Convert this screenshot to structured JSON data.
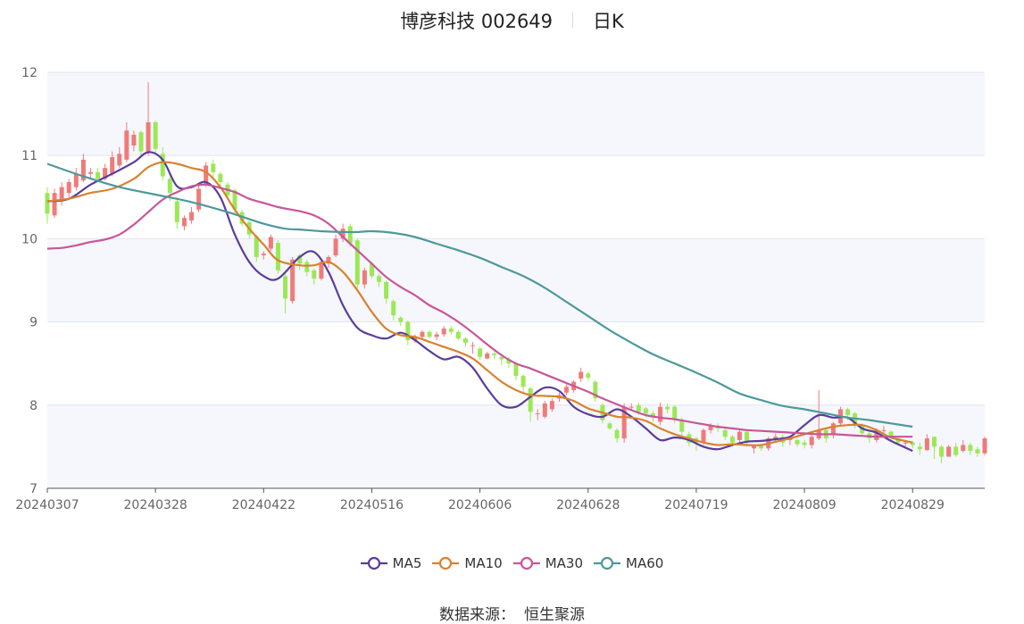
{
  "title": {
    "name": "博彦科技 002649",
    "period": "日K"
  },
  "source": {
    "label": "数据来源：",
    "value": "恒生聚源"
  },
  "colors": {
    "up": "#f07a7a",
    "down": "#9be857",
    "grid": "#e2e5ee",
    "band": "#f6f7fc",
    "axis": "#555555"
  },
  "chart_data": {
    "type": "candlestick",
    "ylim": [
      7,
      12
    ],
    "yticks": [
      7,
      8,
      9,
      10,
      11,
      12
    ],
    "xtick_labels": [
      "20240307",
      "20240328",
      "20240422",
      "20240516",
      "20240606",
      "20240628",
      "20240719",
      "20240809",
      "20240829"
    ],
    "xtick_index": [
      0,
      15,
      30,
      45,
      60,
      75,
      90,
      105,
      120
    ],
    "open": [
      10.55,
      10.28,
      10.45,
      10.55,
      10.62,
      10.7,
      10.78,
      10.8,
      10.72,
      10.78,
      10.88,
      10.95,
      11.12,
      11.28,
      11.05,
      11.4,
      11.02,
      10.72,
      10.45,
      10.15,
      10.22,
      10.35,
      10.65,
      10.9,
      10.78,
      10.65,
      10.58,
      10.32,
      10.2,
      10.03,
      9.8,
      9.88,
      9.95,
      9.55,
      9.25,
      9.8,
      9.72,
      9.62,
      9.52,
      9.7,
      9.8,
      10.0,
      10.15,
      9.98,
      9.45,
      9.7,
      9.55,
      9.48,
      9.25,
      9.05,
      9.0,
      8.78,
      8.82,
      8.88,
      8.82,
      8.85,
      8.92,
      8.88,
      8.8,
      8.72,
      8.68,
      8.56,
      8.62,
      8.58,
      8.55,
      8.5,
      8.35,
      8.2,
      7.9,
      7.86,
      7.95,
      8.08,
      8.15,
      8.18,
      8.32,
      8.38,
      8.28,
      8.0,
      7.78,
      7.7,
      7.6,
      7.98,
      8.0,
      7.96,
      7.9,
      7.8,
      7.98,
      7.98,
      7.82,
      7.65,
      7.6,
      7.55,
      7.7,
      7.75,
      7.7,
      7.62,
      7.58,
      7.68,
      7.48,
      7.52,
      7.48,
      7.58,
      7.62,
      7.58,
      7.58,
      7.55,
      7.52,
      7.6,
      7.7,
      7.65,
      7.78,
      7.95,
      7.9,
      7.76,
      7.66,
      7.58,
      7.7,
      7.68,
      7.6,
      7.55,
      7.55,
      7.5,
      7.46,
      7.62,
      7.5,
      7.38,
      7.5,
      7.45,
      7.52,
      7.47,
      7.42
    ],
    "close": [
      10.3,
      10.55,
      10.62,
      10.68,
      10.78,
      10.95,
      10.8,
      10.72,
      10.85,
      10.98,
      11.02,
      11.3,
      11.25,
      11.05,
      11.4,
      11.08,
      10.75,
      10.55,
      10.2,
      10.25,
      10.32,
      10.6,
      10.88,
      10.8,
      10.68,
      10.52,
      10.35,
      10.18,
      10.05,
      9.78,
      9.82,
      10.02,
      9.62,
      9.28,
      9.75,
      9.7,
      9.6,
      9.52,
      9.72,
      9.78,
      10.0,
      10.12,
      9.95,
      9.45,
      9.62,
      9.55,
      9.48,
      9.28,
      9.08,
      9.0,
      8.78,
      8.82,
      8.88,
      8.82,
      8.85,
      8.92,
      8.88,
      8.8,
      8.75,
      8.72,
      8.58,
      8.62,
      8.6,
      8.55,
      8.5,
      8.35,
      8.22,
      7.92,
      7.9,
      8.02,
      8.05,
      8.12,
      8.22,
      8.28,
      8.4,
      8.33,
      8.08,
      7.82,
      7.72,
      7.6,
      7.98,
      7.98,
      7.92,
      7.9,
      7.85,
      7.98,
      7.95,
      7.82,
      7.68,
      7.55,
      7.55,
      7.7,
      7.75,
      7.72,
      7.62,
      7.55,
      7.68,
      7.55,
      7.52,
      7.48,
      7.6,
      7.62,
      7.55,
      7.6,
      7.53,
      7.52,
      7.62,
      7.7,
      7.6,
      7.78,
      7.95,
      7.88,
      7.76,
      7.66,
      7.6,
      7.7,
      7.7,
      7.62,
      7.55,
      7.55,
      7.52,
      7.47,
      7.6,
      7.5,
      7.38,
      7.5,
      7.4,
      7.52,
      7.45,
      7.42,
      7.6
    ],
    "high": [
      10.62,
      10.6,
      10.68,
      10.72,
      10.85,
      11.02,
      10.85,
      10.85,
      10.9,
      11.05,
      11.1,
      11.4,
      11.3,
      11.3,
      11.88,
      11.42,
      11.1,
      10.75,
      10.5,
      10.28,
      10.38,
      10.65,
      10.92,
      10.95,
      10.8,
      10.68,
      10.6,
      10.35,
      10.22,
      10.05,
      9.85,
      10.05,
      9.98,
      9.58,
      9.78,
      9.82,
      9.75,
      9.64,
      9.76,
      9.8,
      10.05,
      10.18,
      10.18,
      10.0,
      9.65,
      9.72,
      9.58,
      9.5,
      9.27,
      9.07,
      9.02,
      8.85,
      8.9,
      8.9,
      8.88,
      8.95,
      8.95,
      8.9,
      8.82,
      8.76,
      8.7,
      8.64,
      8.65,
      8.62,
      8.58,
      8.52,
      8.37,
      8.22,
      7.95,
      8.05,
      8.08,
      8.15,
      8.25,
      8.3,
      8.45,
      8.4,
      8.3,
      8.03,
      7.8,
      7.72,
      8.02,
      8.02,
      8.03,
      7.98,
      7.93,
      8.03,
      8.02,
      8.0,
      7.85,
      7.68,
      7.62,
      7.72,
      7.78,
      7.78,
      7.72,
      7.64,
      7.7,
      7.7,
      7.5,
      7.53,
      7.62,
      7.66,
      7.65,
      7.62,
      7.6,
      7.58,
      7.65,
      8.18,
      7.72,
      7.8,
      7.98,
      7.97,
      7.92,
      7.78,
      7.68,
      7.72,
      7.75,
      7.7,
      7.62,
      7.58,
      7.57,
      7.55,
      7.65,
      7.62,
      7.52,
      7.52,
      7.55,
      7.58,
      7.55,
      7.5,
      7.62
    ],
    "low": [
      10.18,
      10.25,
      10.4,
      10.5,
      10.58,
      10.68,
      10.72,
      10.68,
      10.7,
      10.75,
      10.85,
      10.92,
      11.05,
      11.0,
      11.0,
      11.02,
      10.7,
      10.45,
      10.12,
      10.1,
      10.18,
      10.32,
      10.62,
      10.72,
      10.62,
      10.48,
      10.3,
      10.15,
      10.0,
      9.72,
      9.75,
      9.85,
      9.58,
      9.1,
      9.22,
      9.62,
      9.55,
      9.45,
      9.5,
      9.65,
      9.78,
      9.96,
      9.9,
      9.4,
      9.4,
      9.52,
      9.42,
      9.22,
      9.02,
      8.95,
      8.72,
      8.75,
      8.8,
      8.8,
      8.78,
      8.82,
      8.85,
      8.78,
      8.7,
      8.62,
      8.55,
      8.55,
      8.55,
      8.48,
      8.45,
      8.3,
      8.15,
      7.8,
      7.82,
      7.84,
      7.92,
      8.04,
      8.12,
      8.15,
      8.28,
      8.3,
      8.04,
      7.78,
      7.7,
      7.55,
      7.55,
      7.94,
      7.88,
      7.85,
      7.8,
      7.76,
      7.9,
      7.78,
      7.62,
      7.5,
      7.45,
      7.52,
      7.66,
      7.68,
      7.58,
      7.5,
      7.52,
      7.5,
      7.42,
      7.45,
      7.45,
      7.55,
      7.5,
      7.52,
      7.5,
      7.48,
      7.48,
      7.58,
      7.55,
      7.6,
      7.75,
      7.82,
      7.72,
      7.62,
      7.55,
      7.55,
      7.65,
      7.58,
      7.52,
      7.5,
      7.48,
      7.4,
      7.45,
      7.35,
      7.3,
      7.42,
      7.38,
      7.43,
      7.4,
      7.38,
      7.4
    ],
    "ma": [
      {
        "name": "MA5",
        "color": "#5a3c9c",
        "x": [
          0,
          3,
          6,
          9,
          12,
          14,
          16,
          18,
          20,
          22,
          24,
          26,
          28,
          30,
          32,
          35,
          37,
          39,
          41,
          43,
          45,
          47,
          49,
          51,
          53,
          55,
          57,
          59,
          61,
          63,
          65,
          67,
          69,
          71,
          73,
          75,
          77,
          79,
          81,
          83,
          85,
          87,
          89,
          91,
          93,
          95,
          97,
          99,
          101,
          103,
          105,
          107,
          109,
          111,
          113,
          115,
          117,
          120
        ],
        "values": [
          10.45,
          10.48,
          10.65,
          10.78,
          10.92,
          11.04,
          10.95,
          10.63,
          10.62,
          10.68,
          10.5,
          10.05,
          9.72,
          9.55,
          9.52,
          9.78,
          9.84,
          9.6,
          9.2,
          8.93,
          8.84,
          8.8,
          8.87,
          8.78,
          8.65,
          8.55,
          8.58,
          8.45,
          8.2,
          8.0,
          7.98,
          8.1,
          8.21,
          8.17,
          7.98,
          7.89,
          7.86,
          7.95,
          7.86,
          7.72,
          7.58,
          7.61,
          7.58,
          7.5,
          7.47,
          7.52,
          7.56,
          7.57,
          7.59,
          7.62,
          7.76,
          7.88,
          7.85,
          7.85,
          7.72,
          7.67,
          7.57,
          7.45
        ]
      },
      {
        "name": "MA10",
        "color": "#d98230",
        "x": [
          0,
          3,
          6,
          9,
          12,
          14,
          16,
          18,
          20,
          22,
          24,
          26,
          28,
          30,
          32,
          35,
          37,
          39,
          41,
          43,
          45,
          47,
          49,
          51,
          53,
          55,
          57,
          59,
          61,
          63,
          65,
          67,
          69,
          71,
          73,
          75,
          77,
          79,
          81,
          83,
          85,
          87,
          89,
          91,
          93,
          95,
          97,
          99,
          101,
          103,
          105,
          107,
          109,
          111,
          113,
          115,
          117,
          120
        ],
        "values": [
          10.45,
          10.48,
          10.55,
          10.6,
          10.72,
          10.86,
          10.92,
          10.9,
          10.85,
          10.8,
          10.62,
          10.35,
          10.12,
          9.93,
          9.74,
          9.68,
          9.68,
          9.72,
          9.6,
          9.38,
          9.12,
          8.92,
          8.84,
          8.82,
          8.76,
          8.7,
          8.64,
          8.56,
          8.42,
          8.28,
          8.18,
          8.12,
          8.11,
          8.1,
          8.05,
          7.96,
          7.91,
          7.86,
          7.85,
          7.81,
          7.72,
          7.65,
          7.6,
          7.55,
          7.52,
          7.53,
          7.52,
          7.52,
          7.56,
          7.6,
          7.65,
          7.7,
          7.74,
          7.76,
          7.76,
          7.7,
          7.61,
          7.55
        ]
      },
      {
        "name": "MA30",
        "color": "#c9559a",
        "x": [
          0,
          2,
          4,
          6,
          8,
          10,
          12,
          14,
          16,
          18,
          20,
          22,
          24,
          26,
          28,
          30,
          32,
          35,
          37,
          39,
          41,
          43,
          45,
          47,
          49,
          51,
          53,
          55,
          57,
          59,
          61,
          63,
          65,
          67,
          69,
          71,
          73,
          75,
          77,
          79,
          81,
          83,
          85,
          87,
          89,
          91,
          93,
          95,
          97,
          99,
          101,
          103,
          105,
          107,
          109,
          111,
          113,
          115,
          117,
          120
        ],
        "values": [
          9.88,
          9.89,
          9.92,
          9.96,
          9.99,
          10.05,
          10.17,
          10.32,
          10.47,
          10.56,
          10.63,
          10.65,
          10.61,
          10.56,
          10.48,
          10.43,
          10.38,
          10.33,
          10.28,
          10.18,
          10.02,
          9.86,
          9.7,
          9.54,
          9.42,
          9.32,
          9.2,
          9.11,
          9.0,
          8.87,
          8.73,
          8.6,
          8.5,
          8.44,
          8.37,
          8.3,
          8.23,
          8.16,
          8.08,
          8.01,
          7.94,
          7.88,
          7.85,
          7.83,
          7.8,
          7.77,
          7.74,
          7.72,
          7.7,
          7.69,
          7.68,
          7.67,
          7.66,
          7.65,
          7.65,
          7.64,
          7.63,
          7.62,
          7.62,
          7.62
        ]
      },
      {
        "name": "MA60",
        "color": "#4d999c",
        "x": [
          0,
          5,
          10,
          15,
          20,
          25,
          30,
          33,
          35,
          38,
          41,
          43,
          45,
          48,
          51,
          54,
          57,
          60,
          63,
          66,
          69,
          72,
          75,
          78,
          81,
          84,
          87,
          90,
          93,
          96,
          99,
          102,
          105,
          108,
          111,
          114,
          117,
          120
        ],
        "values": [
          10.9,
          10.75,
          10.62,
          10.53,
          10.44,
          10.32,
          10.18,
          10.12,
          10.11,
          10.09,
          10.08,
          10.08,
          10.09,
          10.07,
          10.02,
          9.94,
          9.86,
          9.77,
          9.66,
          9.55,
          9.41,
          9.24,
          9.07,
          8.9,
          8.75,
          8.61,
          8.5,
          8.39,
          8.27,
          8.14,
          8.06,
          7.99,
          7.95,
          7.9,
          7.85,
          7.82,
          7.78,
          7.74
        ]
      }
    ]
  }
}
